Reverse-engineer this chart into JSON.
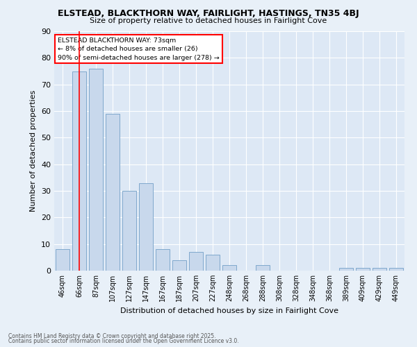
{
  "title1": "ELSTEAD, BLACKTHORN WAY, FAIRLIGHT, HASTINGS, TN35 4BJ",
  "title2": "Size of property relative to detached houses in Fairlight Cove",
  "xlabel": "Distribution of detached houses by size in Fairlight Cove",
  "ylabel": "Number of detached properties",
  "bar_color": "#c8d8ec",
  "bar_edge_color": "#7fa8cc",
  "bg_color": "#dde8f5",
  "fig_color": "#e8f0f8",
  "grid_color": "#ffffff",
  "categories": [
    "46sqm",
    "66sqm",
    "87sqm",
    "107sqm",
    "127sqm",
    "147sqm",
    "167sqm",
    "187sqm",
    "207sqm",
    "227sqm",
    "248sqm",
    "268sqm",
    "288sqm",
    "308sqm",
    "328sqm",
    "348sqm",
    "368sqm",
    "389sqm",
    "409sqm",
    "429sqm",
    "449sqm"
  ],
  "values": [
    8,
    75,
    76,
    59,
    30,
    33,
    8,
    4,
    7,
    6,
    2,
    0,
    2,
    0,
    0,
    0,
    0,
    1,
    1,
    1,
    1
  ],
  "ylim": [
    0,
    90
  ],
  "yticks": [
    0,
    10,
    20,
    30,
    40,
    50,
    60,
    70,
    80,
    90
  ],
  "red_line_x": 1.0,
  "annotation_title": "ELSTEAD BLACKTHORN WAY: 73sqm",
  "annotation_line1": "← 8% of detached houses are smaller (26)",
  "annotation_line2": "90% of semi-detached houses are larger (278) →",
  "footer1": "Contains HM Land Registry data © Crown copyright and database right 2025.",
  "footer2": "Contains public sector information licensed under the Open Government Licence v3.0."
}
